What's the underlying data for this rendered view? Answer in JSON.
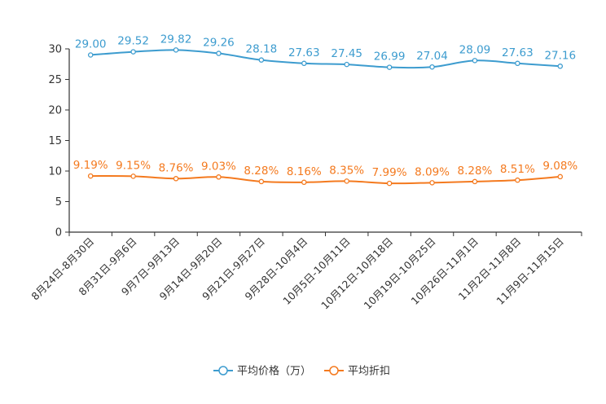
{
  "chart_data": {
    "type": "line",
    "title": "",
    "xlabel": "",
    "ylabel": "",
    "ylim": [
      0,
      30
    ],
    "yticks": [
      0,
      5,
      10,
      15,
      20,
      25,
      30
    ],
    "grid": false,
    "legend_position": "bottom-center",
    "categories": [
      "8月24日-8月30日",
      "8月31日-9月6日",
      "9月7日-9月13日",
      "9月14日-9月20日",
      "9月21日-9月27日",
      "9月28日-10月4日",
      "10月5日-10月11日",
      "10月12日-10月18日",
      "10月19日-10月25日",
      "10月26日-11月1日",
      "11月2日-11月8日",
      "11月9日-11月15日"
    ],
    "series": [
      {
        "name": "平均价格（万）",
        "color": "#3d9ccf",
        "values": [
          29.0,
          29.52,
          29.82,
          29.26,
          28.18,
          27.63,
          27.45,
          26.99,
          27.04,
          28.09,
          27.63,
          27.16
        ],
        "labels": [
          "29.00",
          "29.52",
          "29.82",
          "29.26",
          "28.18",
          "27.63",
          "27.45",
          "26.99",
          "27.04",
          "28.09",
          "27.63",
          "27.16"
        ]
      },
      {
        "name": "平均折扣",
        "color": "#f47a1f",
        "values": [
          9.19,
          9.15,
          8.76,
          9.03,
          8.28,
          8.16,
          8.35,
          7.99,
          8.09,
          8.28,
          8.51,
          9.08
        ],
        "labels": [
          "9.19%",
          "9.15%",
          "8.76%",
          "9.03%",
          "8.28%",
          "8.16%",
          "8.35%",
          "7.99%",
          "8.09%",
          "8.28%",
          "8.51%",
          "9.08%"
        ]
      }
    ]
  }
}
